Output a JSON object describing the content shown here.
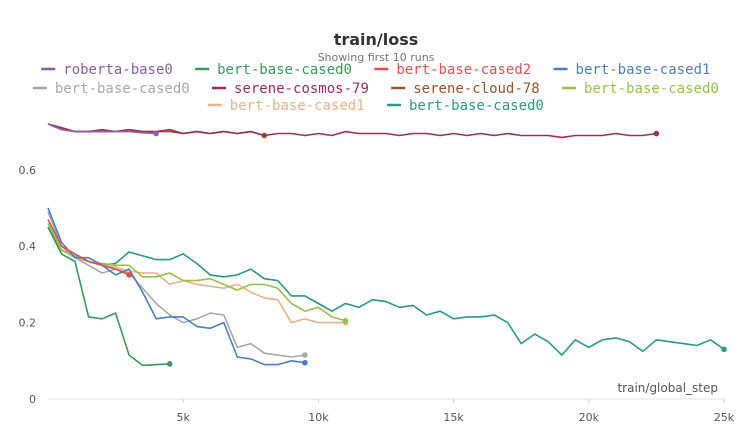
{
  "chart_data": {
    "type": "line",
    "title": "train/loss",
    "subtitle": "Showing first 10 runs",
    "xlabel": "train/global_step",
    "ylabel": "",
    "xlim": [
      0,
      25000
    ],
    "ylim": [
      0,
      0.72
    ],
    "x_ticks": [
      5000,
      10000,
      15000,
      20000,
      25000
    ],
    "x_tick_labels": [
      "5k",
      "10k",
      "15k",
      "20k",
      "25k"
    ],
    "y_ticks": [
      0,
      0.2,
      0.4,
      0.6
    ],
    "y_tick_labels": [
      "0",
      "0.2",
      "0.4",
      "0.6"
    ],
    "grid": false,
    "legend_position": "top",
    "series": [
      {
        "name": "roberta-base0",
        "color": "#8e5ea2",
        "x": [
          0,
          500,
          1000,
          1500,
          2000,
          2500,
          3000,
          3500,
          4000
        ],
        "y": [
          0.72,
          0.705,
          0.7,
          0.7,
          0.7,
          0.7,
          0.7,
          0.697,
          0.695
        ]
      },
      {
        "name": "bert-base-cased0",
        "color": "#3a9a5b",
        "x": [
          0,
          500,
          1000,
          1500,
          2000,
          2500,
          3000,
          3500,
          4000,
          4500
        ],
        "y": [
          0.45,
          0.38,
          0.36,
          0.215,
          0.21,
          0.225,
          0.115,
          0.088,
          0.09,
          0.092
        ]
      },
      {
        "name": "bert-base-cased2",
        "color": "#d9534f",
        "x": [
          0,
          500,
          1000,
          1500,
          2000,
          2500,
          3000
        ],
        "y": [
          0.47,
          0.4,
          0.38,
          0.36,
          0.35,
          0.34,
          0.325
        ]
      },
      {
        "name": "bert-base-cased1",
        "color": "#4a7fc9",
        "x": [
          0,
          500,
          1000,
          1500,
          2000,
          2500,
          3000,
          3500,
          4000,
          4500,
          5000,
          5500,
          6000,
          6500,
          7000,
          7500,
          8000,
          8500,
          9000,
          9500
        ],
        "y": [
          0.5,
          0.41,
          0.37,
          0.37,
          0.35,
          0.325,
          0.34,
          0.28,
          0.21,
          0.215,
          0.215,
          0.19,
          0.185,
          0.2,
          0.11,
          0.105,
          0.09,
          0.09,
          0.1,
          0.095
        ]
      },
      {
        "name": "bert-base-cased0",
        "color": "#a8a8a8",
        "x": [
          0,
          500,
          1000,
          1500,
          2000,
          2500,
          3000,
          3500,
          4000,
          4500,
          5000,
          5500,
          6000,
          6500,
          7000,
          7500,
          8000,
          8500,
          9000,
          9500
        ],
        "y": [
          0.49,
          0.4,
          0.37,
          0.35,
          0.33,
          0.34,
          0.33,
          0.29,
          0.25,
          0.22,
          0.2,
          0.21,
          0.225,
          0.22,
          0.135,
          0.145,
          0.12,
          0.115,
          0.11,
          0.115
        ]
      },
      {
        "name": "serene-cosmos-79",
        "color": "#a32a5c",
        "x": [
          0,
          500,
          1000,
          1500,
          2000,
          2500,
          3000,
          3500,
          4000,
          4500,
          5000,
          5500,
          6000,
          6500,
          7000,
          7500,
          8000,
          8500,
          9000,
          9500,
          10000,
          10500,
          11000,
          11500,
          12000,
          12500,
          13000,
          13500,
          14000,
          14500,
          15000,
          15500,
          16000,
          16500,
          17000,
          17500,
          18000,
          18500,
          19000,
          19500,
          20000,
          20500,
          21000,
          21500,
          22000,
          22500
        ],
        "y": [
          0.72,
          0.71,
          0.7,
          0.7,
          0.705,
          0.7,
          0.705,
          0.7,
          0.7,
          0.705,
          0.695,
          0.7,
          0.695,
          0.7,
          0.695,
          0.7,
          0.69,
          0.695,
          0.695,
          0.69,
          0.695,
          0.69,
          0.7,
          0.695,
          0.695,
          0.695,
          0.69,
          0.695,
          0.695,
          0.69,
          0.695,
          0.69,
          0.695,
          0.69,
          0.695,
          0.69,
          0.69,
          0.69,
          0.685,
          0.69,
          0.69,
          0.69,
          0.695,
          0.69,
          0.69,
          0.695
        ]
      },
      {
        "name": "serene-cloud-78",
        "color": "#a0522d",
        "x": [
          0,
          500,
          1000,
          1500,
          2000,
          2500,
          3000,
          3500,
          4000,
          4500,
          5000,
          5500,
          6000,
          6500,
          7000,
          7500,
          8000
        ],
        "y": [
          0.72,
          0.71,
          0.7,
          0.7,
          0.7,
          0.7,
          0.705,
          0.7,
          0.7,
          0.7,
          0.695,
          0.7,
          0.695,
          0.7,
          0.695,
          0.7,
          0.69
        ]
      },
      {
        "name": "bert-base-cased0",
        "color": "#9bbf4a",
        "x": [
          0,
          500,
          1000,
          1500,
          2000,
          2500,
          3000,
          3500,
          4000,
          4500,
          5000,
          5500,
          6000,
          6500,
          7000,
          7500,
          8000,
          8500,
          9000,
          9500,
          10000,
          10500,
          11000
        ],
        "y": [
          0.46,
          0.39,
          0.375,
          0.36,
          0.355,
          0.35,
          0.35,
          0.32,
          0.32,
          0.33,
          0.31,
          0.31,
          0.315,
          0.3,
          0.285,
          0.3,
          0.3,
          0.29,
          0.25,
          0.23,
          0.24,
          0.215,
          0.205
        ]
      },
      {
        "name": "bert-base-cased1",
        "color": "#e8b08c",
        "x": [
          0,
          500,
          1000,
          1500,
          2000,
          2500,
          3000,
          3500,
          4000,
          4500,
          5000,
          5500,
          6000,
          6500,
          7000,
          7500,
          8000,
          8500,
          9000,
          9500,
          10000,
          10500,
          11000
        ],
        "y": [
          0.46,
          0.39,
          0.37,
          0.36,
          0.35,
          0.345,
          0.335,
          0.33,
          0.33,
          0.3,
          0.31,
          0.3,
          0.295,
          0.29,
          0.3,
          0.28,
          0.265,
          0.26,
          0.2,
          0.21,
          0.2,
          0.2,
          0.2
        ]
      },
      {
        "name": "bert-base-cased0",
        "color": "#2a9a82",
        "x": [
          0,
          500,
          1000,
          1500,
          2000,
          2500,
          3000,
          3500,
          4000,
          4500,
          5000,
          5500,
          6000,
          6500,
          7000,
          7500,
          8000,
          8500,
          9000,
          9500,
          10000,
          10500,
          11000,
          11500,
          12000,
          12500,
          13000,
          13500,
          14000,
          14500,
          15000,
          15500,
          16000,
          16500,
          17000,
          17500,
          18000,
          18500,
          19000,
          19500,
          20000,
          20500,
          21000,
          21500,
          22000,
          22500,
          23000,
          23500,
          24000,
          24500,
          25000
        ],
        "y": [
          0.45,
          0.39,
          0.37,
          0.36,
          0.35,
          0.355,
          0.385,
          0.375,
          0.365,
          0.365,
          0.38,
          0.355,
          0.325,
          0.32,
          0.325,
          0.34,
          0.315,
          0.31,
          0.27,
          0.27,
          0.25,
          0.23,
          0.25,
          0.24,
          0.26,
          0.255,
          0.24,
          0.245,
          0.22,
          0.23,
          0.21,
          0.215,
          0.215,
          0.22,
          0.2,
          0.145,
          0.17,
          0.15,
          0.115,
          0.155,
          0.135,
          0.155,
          0.16,
          0.15,
          0.125,
          0.155,
          0.15,
          0.145,
          0.14,
          0.155,
          0.13
        ]
      }
    ]
  }
}
